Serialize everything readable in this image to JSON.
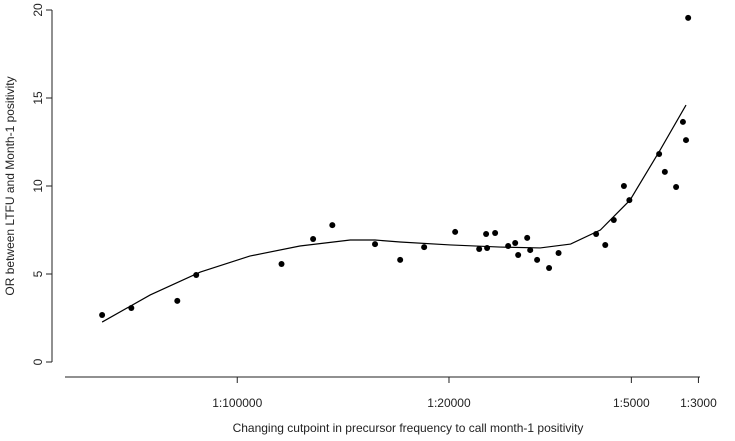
{
  "chart_data": {
    "type": "scatter",
    "xlabel": "Changing cutpoint in precursor frequency to call month-1 positivity",
    "ylabel": "OR between LTFU and Month-1 positivity",
    "xlog": true,
    "xlim": [
      2.7e-06,
      0.000337
    ],
    "xticks": [
      {
        "value": 1e-05,
        "label": "1:100000"
      },
      {
        "value": 5e-05,
        "label": "1:20000"
      },
      {
        "value": 0.0002,
        "label": "1:5000"
      },
      {
        "value": 0.000333,
        "label": "1:3000"
      }
    ],
    "ylim": [
      0,
      20
    ],
    "yticks": [
      0,
      5,
      10,
      15,
      20
    ],
    "color": "#000000",
    "x": [
      3.58e-06,
      4.47e-06,
      6.34e-06,
      7.32e-06,
      1.4e-05,
      1.78e-05,
      2.06e-05,
      2.85e-05,
      3.45e-05,
      4.14e-05,
      5.24e-05,
      6.29e-05,
      6.63e-05,
      6.68e-05,
      7.1e-05,
      7.84e-05,
      8.27e-05,
      8.46e-05,
      9.06e-05,
      9.27e-05,
      9.77e-05,
      0.000107,
      0.000115,
      0.000153,
      0.000164,
      0.000175,
      0.000189,
      0.000197,
      0.000247,
      0.000258,
      0.000281,
      0.000296,
      0.000303,
      0.000308
    ],
    "values": [
      2.67,
      3.07,
      3.47,
      4.94,
      5.57,
      6.99,
      7.78,
      6.7,
      5.8,
      6.53,
      7.39,
      6.42,
      7.27,
      6.48,
      7.33,
      6.59,
      6.76,
      6.08,
      7.05,
      6.36,
      5.8,
      5.34,
      6.19,
      7.27,
      6.65,
      8.07,
      10.0,
      9.2,
      11.82,
      10.8,
      9.94,
      13.64,
      12.61,
      19.55
    ],
    "fit": {
      "type": "line",
      "color": "#000000",
      "x": [
        3.58e-06,
        5.16e-06,
        7.55e-06,
        1.1e-05,
        1.61e-05,
        2.36e-05,
        2.85e-05,
        3.45e-05,
        5.05e-05,
        7.38e-05,
        0.0001,
        0.000126,
        0.000158,
        0.000198,
        0.000249,
        0.000303
      ],
      "values": [
        2.27,
        3.81,
        5.11,
        6.02,
        6.59,
        6.93,
        6.93,
        6.82,
        6.65,
        6.53,
        6.48,
        6.7,
        7.5,
        9.2,
        12.05,
        14.6
      ]
    }
  }
}
